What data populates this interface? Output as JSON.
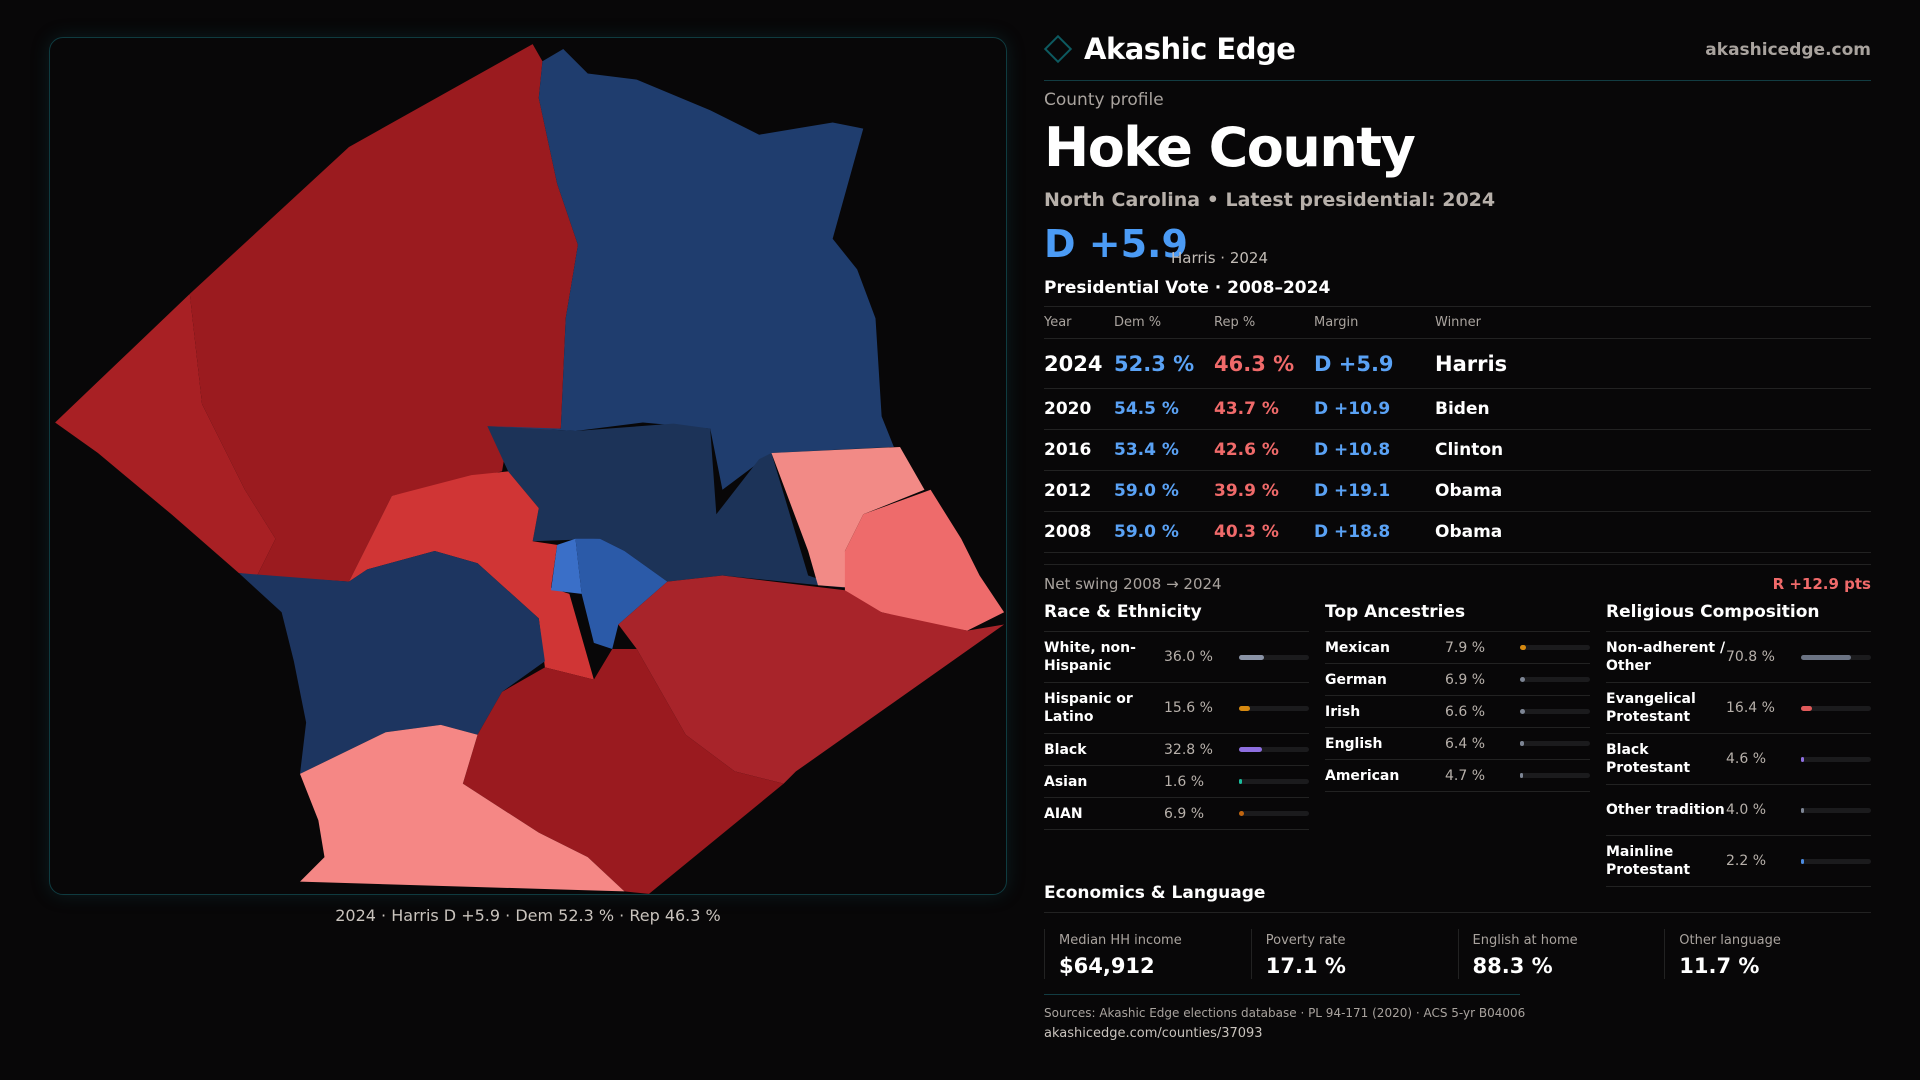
{
  "brand": {
    "name": "Akashic Edge",
    "site": "akashicedge.com",
    "accent": "#0d5a60"
  },
  "profile": {
    "kicker": "County profile",
    "title": "Hoke County",
    "subtitle": "North Carolina • Latest presidential: 2024",
    "margin": "D +5.9",
    "margin_note": "Harris · 2024"
  },
  "colors": {
    "dem": "#5aa2f5",
    "rep": "#f06a6a"
  },
  "map": {
    "caption": "2024 · Harris D +5.9 · Dem 52.3 % · Rep 46.3 %"
  },
  "presidential": {
    "title": "Presidential Vote · 2008–2024",
    "headers": [
      "Year",
      "Dem %",
      "Rep %",
      "Margin",
      "Winner"
    ],
    "rows": [
      {
        "year": "2024",
        "dem": "52.3 %",
        "rep": "46.3 %",
        "margin": "D +5.9",
        "winner": "Harris"
      },
      {
        "year": "2020",
        "dem": "54.5 %",
        "rep": "43.7 %",
        "margin": "D +10.9",
        "winner": "Biden"
      },
      {
        "year": "2016",
        "dem": "53.4 %",
        "rep": "42.6 %",
        "margin": "D +10.8",
        "winner": "Clinton"
      },
      {
        "year": "2012",
        "dem": "59.0 %",
        "rep": "39.9 %",
        "margin": "D +19.1",
        "winner": "Obama"
      },
      {
        "year": "2008",
        "dem": "59.0 %",
        "rep": "40.3 %",
        "margin": "D +18.8",
        "winner": "Obama"
      }
    ],
    "swing_label": "Net swing 2008 → 2024",
    "swing_value": "R +12.9 pts"
  },
  "race": {
    "title": "Race & Ethnicity",
    "items": [
      {
        "label": "White, non-Hispanic",
        "value": "36.0 %",
        "pct": 36.0,
        "color": "#8a93a6"
      },
      {
        "label": "Hispanic or Latino",
        "value": "15.6 %",
        "pct": 15.6,
        "color": "#d68910"
      },
      {
        "label": "Black",
        "value": "32.8 %",
        "pct": 32.8,
        "color": "#8e6fe0"
      },
      {
        "label": "Asian",
        "value": "1.6 %",
        "pct": 1.6,
        "color": "#1abc9c"
      },
      {
        "label": "AIAN",
        "value": "6.9 %",
        "pct": 6.9,
        "color": "#c0650f"
      }
    ]
  },
  "ancestry": {
    "title": "Top Ancestries",
    "items": [
      {
        "label": "Mexican",
        "value": "7.9 %",
        "pct": 7.9,
        "color": "#d68910"
      },
      {
        "label": "German",
        "value": "6.9 %",
        "pct": 6.9,
        "color": "#7d8594"
      },
      {
        "label": "Irish",
        "value": "6.6 %",
        "pct": 6.6,
        "color": "#7d8594"
      },
      {
        "label": "English",
        "value": "6.4 %",
        "pct": 6.4,
        "color": "#7d8594"
      },
      {
        "label": "American",
        "value": "4.7 %",
        "pct": 4.7,
        "color": "#7d8594"
      }
    ]
  },
  "religion": {
    "title": "Religious Composition",
    "items": [
      {
        "label": "Non-adherent / Other",
        "value": "70.8 %",
        "pct": 70.8,
        "color": "#6b7383"
      },
      {
        "label": "Evangelical Protestant",
        "value": "16.4 %",
        "pct": 16.4,
        "color": "#e05a5a"
      },
      {
        "label": "Black Protestant",
        "value": "4.6 %",
        "pct": 4.6,
        "color": "#8e6fe0"
      },
      {
        "label": "Other tradition",
        "value": "4.0 %",
        "pct": 4.0,
        "color": "#7d8594"
      },
      {
        "label": "Mainline Protestant",
        "value": "2.2 %",
        "pct": 2.2,
        "color": "#4b8be0"
      }
    ]
  },
  "economics": {
    "title": "Economics & Language",
    "cards": [
      {
        "label": "Median HH income",
        "value": "$64,912"
      },
      {
        "label": "Poverty rate",
        "value": "17.1 %"
      },
      {
        "label": "English at home",
        "value": "88.3 %"
      },
      {
        "label": "Other language",
        "value": "11.7 %"
      }
    ]
  },
  "footer": {
    "sources": "Sources: Akashic Edge elections database · PL 94-171 (2020) · ACS 5-yr B04006",
    "link": "akashicedge.com/counties/37093"
  }
}
